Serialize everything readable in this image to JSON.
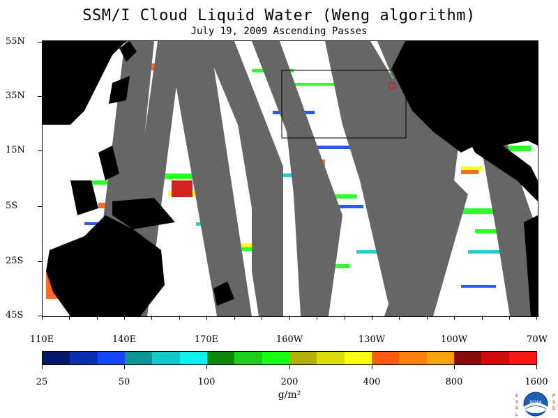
{
  "title": "SSM/I Cloud Liquid Water (Weng algorithm)",
  "subtitle": "July 19, 2009  Ascending Passes",
  "lat_labels": [
    "55N",
    "35N",
    "15N",
    "5S",
    "25S",
    "45S"
  ],
  "lon_labels": [
    "110E",
    "140E",
    "170E",
    "160W",
    "130W",
    "100W",
    "70W"
  ],
  "colorbar": {
    "colors": [
      "#021a6b",
      "#0a2fb0",
      "#1546ff",
      "#0e9696",
      "#14c8c8",
      "#10f0f0",
      "#0a8a0a",
      "#1bcf1b",
      "#17ff17",
      "#b4b00a",
      "#dcdc0a",
      "#ffff10",
      "#ff5a0f",
      "#ff7f0f",
      "#ffa00f",
      "#8c0a0a",
      "#d20a0a",
      "#ff1414"
    ],
    "labels": [
      "25",
      "50",
      "100",
      "200",
      "400",
      "800",
      "1600"
    ]
  },
  "units": "g/m²",
  "colors": {
    "land": "#000000",
    "no_data": "#666666",
    "clear_sky": "#ffffff"
  },
  "logo": {
    "left_letters": "ESRL",
    "right_letters": "PSD",
    "center_text": "NOAA"
  }
}
